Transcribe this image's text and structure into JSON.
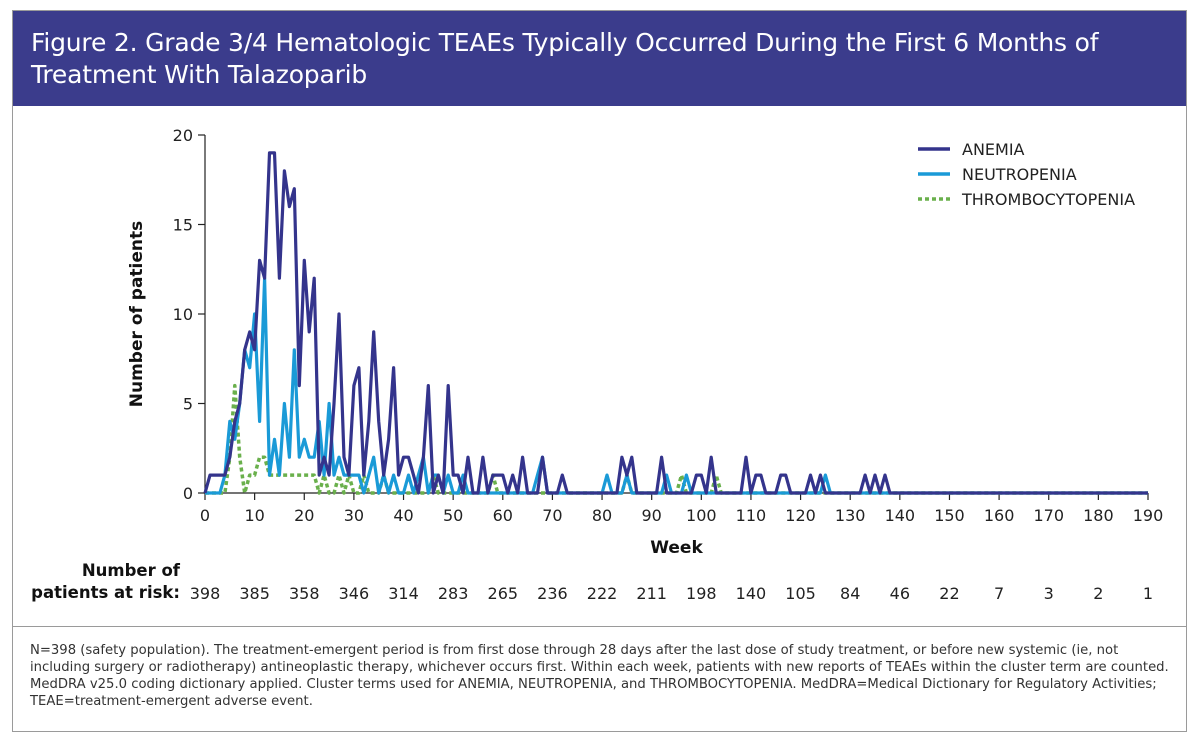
{
  "header": {
    "title": "Figure 2. Grade 3/4 Hematologic TEAEs Typically Occurred During the First 6 Months of Treatment With Talazoparib"
  },
  "colors": {
    "header_bg": "#3b3c8c",
    "anemia": "#34348c",
    "neutropenia": "#1a9ad7",
    "thrombocytopenia": "#6ab04c"
  },
  "chart_data": {
    "type": "line",
    "xlabel": "Week",
    "ylabel": "Number of patients",
    "xlim": [
      0,
      190
    ],
    "ylim": [
      0,
      20
    ],
    "x_ticks": [
      0,
      10,
      20,
      30,
      40,
      50,
      60,
      70,
      80,
      90,
      100,
      110,
      120,
      130,
      140,
      150,
      160,
      170,
      180,
      190
    ],
    "y_ticks": [
      0,
      5,
      10,
      15,
      20
    ],
    "grid": false,
    "legend_position": "top-right",
    "series": [
      {
        "name": "ANEMIA",
        "style": "solid",
        "points": [
          [
            0,
            0
          ],
          [
            1,
            1
          ],
          [
            2,
            1
          ],
          [
            3,
            1
          ],
          [
            4,
            1
          ],
          [
            5,
            2
          ],
          [
            6,
            4
          ],
          [
            7,
            5
          ],
          [
            8,
            8
          ],
          [
            9,
            9
          ],
          [
            10,
            8
          ],
          [
            11,
            13
          ],
          [
            12,
            12
          ],
          [
            13,
            19
          ],
          [
            14,
            19
          ],
          [
            15,
            12
          ],
          [
            16,
            18
          ],
          [
            17,
            16
          ],
          [
            18,
            17
          ],
          [
            19,
            6
          ],
          [
            20,
            13
          ],
          [
            21,
            9
          ],
          [
            22,
            12
          ],
          [
            23,
            1
          ],
          [
            24,
            2
          ],
          [
            25,
            1
          ],
          [
            26,
            5
          ],
          [
            27,
            10
          ],
          [
            28,
            2
          ],
          [
            29,
            1
          ],
          [
            30,
            6
          ],
          [
            31,
            7
          ],
          [
            32,
            1
          ],
          [
            33,
            4
          ],
          [
            34,
            9
          ],
          [
            35,
            4
          ],
          [
            36,
            1
          ],
          [
            37,
            3
          ],
          [
            38,
            7
          ],
          [
            39,
            1
          ],
          [
            40,
            2
          ],
          [
            41,
            2
          ],
          [
            42,
            1
          ],
          [
            43,
            0
          ],
          [
            44,
            2
          ],
          [
            45,
            6
          ],
          [
            46,
            0
          ],
          [
            47,
            1
          ],
          [
            48,
            0
          ],
          [
            49,
            6
          ],
          [
            50,
            1
          ],
          [
            51,
            1
          ],
          [
            52,
            0
          ],
          [
            53,
            2
          ],
          [
            54,
            0
          ],
          [
            55,
            0
          ],
          [
            56,
            2
          ],
          [
            57,
            0
          ],
          [
            58,
            1
          ],
          [
            59,
            1
          ],
          [
            60,
            1
          ],
          [
            61,
            0
          ],
          [
            62,
            1
          ],
          [
            63,
            0
          ],
          [
            64,
            2
          ],
          [
            65,
            0
          ],
          [
            66,
            0
          ],
          [
            67,
            0
          ],
          [
            68,
            2
          ],
          [
            69,
            0
          ],
          [
            70,
            0
          ],
          [
            71,
            0
          ],
          [
            72,
            1
          ],
          [
            73,
            0
          ],
          [
            80,
            0
          ],
          [
            81,
            0
          ],
          [
            82,
            0
          ],
          [
            83,
            0
          ],
          [
            84,
            2
          ],
          [
            85,
            1
          ],
          [
            86,
            2
          ],
          [
            87,
            0
          ],
          [
            91,
            0
          ],
          [
            92,
            2
          ],
          [
            93,
            0
          ],
          [
            97,
            0
          ],
          [
            98,
            0
          ],
          [
            99,
            1
          ],
          [
            100,
            1
          ],
          [
            101,
            0
          ],
          [
            102,
            2
          ],
          [
            103,
            0
          ],
          [
            107,
            0
          ],
          [
            108,
            0
          ],
          [
            109,
            2
          ],
          [
            110,
            0
          ],
          [
            111,
            1
          ],
          [
            112,
            1
          ],
          [
            113,
            0
          ],
          [
            115,
            0
          ],
          [
            116,
            1
          ],
          [
            117,
            1
          ],
          [
            118,
            0
          ],
          [
            121,
            0
          ],
          [
            122,
            1
          ],
          [
            123,
            0
          ],
          [
            124,
            1
          ],
          [
            125,
            0
          ],
          [
            132,
            0
          ],
          [
            133,
            1
          ],
          [
            134,
            0
          ],
          [
            135,
            1
          ],
          [
            136,
            0
          ],
          [
            137,
            1
          ],
          [
            138,
            0
          ],
          [
            190,
            0
          ]
        ]
      },
      {
        "name": "NEUTROPENIA",
        "style": "solid",
        "points": [
          [
            0,
            0
          ],
          [
            3,
            0
          ],
          [
            4,
            1
          ],
          [
            5,
            4
          ],
          [
            6,
            3
          ],
          [
            7,
            5
          ],
          [
            8,
            8
          ],
          [
            9,
            7
          ],
          [
            10,
            10
          ],
          [
            11,
            4
          ],
          [
            12,
            12
          ],
          [
            13,
            1
          ],
          [
            14,
            3
          ],
          [
            15,
            1
          ],
          [
            16,
            5
          ],
          [
            17,
            2
          ],
          [
            18,
            8
          ],
          [
            19,
            2
          ],
          [
            20,
            3
          ],
          [
            21,
            2
          ],
          [
            22,
            2
          ],
          [
            23,
            4
          ],
          [
            24,
            1
          ],
          [
            25,
            5
          ],
          [
            26,
            1
          ],
          [
            27,
            2
          ],
          [
            28,
            1
          ],
          [
            29,
            1
          ],
          [
            30,
            1
          ],
          [
            31,
            1
          ],
          [
            32,
            0
          ],
          [
            33,
            1
          ],
          [
            34,
            2
          ],
          [
            35,
            0
          ],
          [
            36,
            1
          ],
          [
            37,
            0
          ],
          [
            38,
            1
          ],
          [
            39,
            0
          ],
          [
            40,
            0
          ],
          [
            41,
            1
          ],
          [
            42,
            0
          ],
          [
            43,
            1
          ],
          [
            44,
            2
          ],
          [
            45,
            0
          ],
          [
            46,
            1
          ],
          [
            47,
            1
          ],
          [
            48,
            0
          ],
          [
            49,
            1
          ],
          [
            50,
            0
          ],
          [
            51,
            0
          ],
          [
            52,
            1
          ],
          [
            53,
            0
          ],
          [
            66,
            0
          ],
          [
            67,
            1
          ],
          [
            68,
            2
          ],
          [
            69,
            0
          ],
          [
            80,
            0
          ],
          [
            81,
            1
          ],
          [
            82,
            0
          ],
          [
            84,
            0
          ],
          [
            85,
            1
          ],
          [
            86,
            0
          ],
          [
            92,
            0
          ],
          [
            93,
            1
          ],
          [
            94,
            0
          ],
          [
            96,
            0
          ],
          [
            97,
            1
          ],
          [
            98,
            0
          ],
          [
            124,
            0
          ],
          [
            125,
            1
          ],
          [
            126,
            0
          ],
          [
            190,
            0
          ]
        ]
      },
      {
        "name": "THROMBOCYTOPENIA",
        "style": "dotted",
        "points": [
          [
            0,
            0
          ],
          [
            4,
            0
          ],
          [
            5,
            2
          ],
          [
            6,
            6
          ],
          [
            7,
            2
          ],
          [
            8,
            0
          ],
          [
            9,
            1
          ],
          [
            10,
            1
          ],
          [
            11,
            2
          ],
          [
            12,
            2
          ],
          [
            13,
            1
          ],
          [
            14,
            1
          ],
          [
            15,
            1
          ],
          [
            16,
            1
          ],
          [
            17,
            1
          ],
          [
            18,
            1
          ],
          [
            19,
            1
          ],
          [
            20,
            1
          ],
          [
            21,
            1
          ],
          [
            22,
            1
          ],
          [
            23,
            0
          ],
          [
            24,
            1
          ],
          [
            25,
            0
          ],
          [
            26,
            0
          ],
          [
            27,
            1
          ],
          [
            28,
            0
          ],
          [
            29,
            1
          ],
          [
            30,
            0
          ],
          [
            31,
            0
          ],
          [
            32,
            1
          ],
          [
            33,
            0
          ],
          [
            35,
            0
          ],
          [
            36,
            1
          ],
          [
            37,
            0
          ],
          [
            45,
            0
          ],
          [
            46,
            1
          ],
          [
            47,
            0
          ],
          [
            57,
            0
          ],
          [
            58,
            1
          ],
          [
            59,
            0
          ],
          [
            84,
            0
          ],
          [
            85,
            1
          ],
          [
            86,
            0
          ],
          [
            95,
            0
          ],
          [
            96,
            1
          ],
          [
            97,
            0
          ],
          [
            102,
            0
          ],
          [
            103,
            1
          ],
          [
            104,
            0
          ],
          [
            117,
            0
          ],
          [
            118,
            0
          ],
          [
            190,
            0
          ]
        ]
      }
    ],
    "at_risk": {
      "label_line1": "Number of",
      "label_line2": "patients at risk:",
      "weeks": [
        0,
        10,
        20,
        30,
        40,
        50,
        60,
        70,
        80,
        90,
        100,
        110,
        120,
        130,
        140,
        150,
        160,
        170,
        180,
        190
      ],
      "values": [
        "398",
        "385",
        "358",
        "346",
        "314",
        "283",
        "265",
        "236",
        "222",
        "211",
        "198",
        "140",
        "105",
        "84",
        "46",
        "22",
        "7",
        "3",
        "2",
        "1"
      ]
    }
  },
  "footnote": "N=398 (safety population). The treatment-emergent period is from first dose through 28 days after the last dose of study treatment, or before new systemic (ie, not including surgery or radiotherapy) antineoplastic therapy, whichever occurs first. Within each week, patients with new reports of TEAEs within the cluster term are counted. MedDRA v25.0 coding dictionary applied. Cluster terms used for ANEMIA, NEUTROPENIA, and THROMBOCYTOPENIA. MedDRA=Medical Dictionary for Regulatory Activities; TEAE=treatment-emergent adverse event."
}
